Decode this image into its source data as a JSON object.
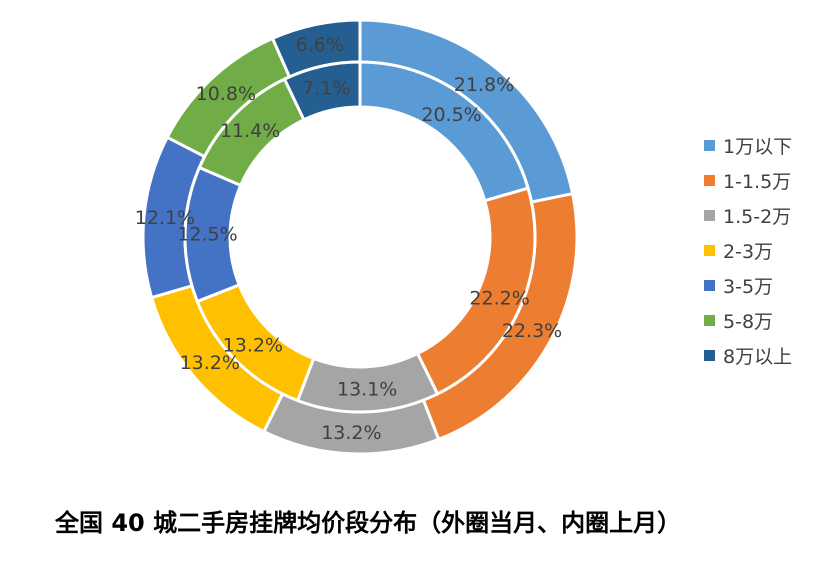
{
  "chart_data": {
    "type": "pie",
    "variant": "doughnut",
    "title": "全国 40 城二手房挂牌均价段分布（外圈当月、内圈上月）",
    "categories": [
      "1万以下",
      "1-1.5万",
      "1.5-2万",
      "2-3万",
      "3-5万",
      "5-8万",
      "8万以上"
    ],
    "colors": [
      "#5B9BD5",
      "#ED7D31",
      "#A5A5A5",
      "#FFC000",
      "#4472C4",
      "#70AD47",
      "#255E91"
    ],
    "rings": {
      "outer": [
        21.8,
        22.3,
        13.2,
        13.2,
        12.1,
        10.8,
        6.6
      ],
      "inner": [
        20.5,
        22.2,
        13.1,
        13.2,
        12.5,
        11.4,
        7.1
      ]
    },
    "label_suffix": "%",
    "legend_position": "right",
    "label_color": "#404040",
    "separator_color": "#FFFFFF"
  }
}
